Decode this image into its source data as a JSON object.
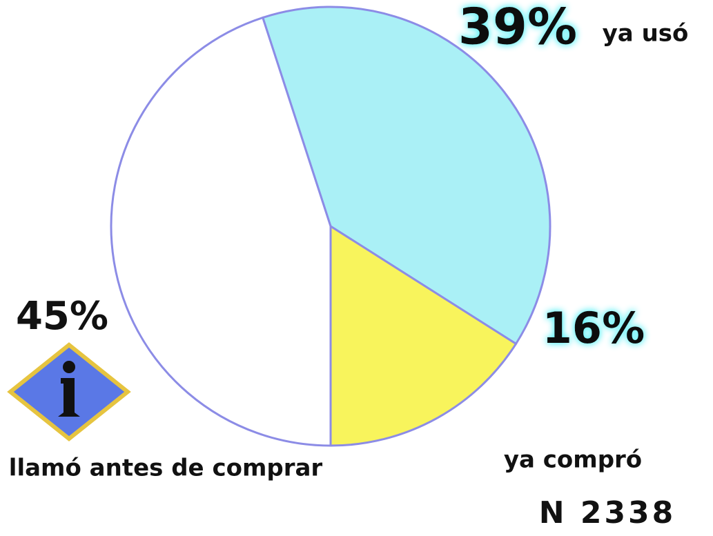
{
  "chart_data": {
    "type": "pie",
    "categories": [
      "llamó antes de comprar",
      "ya usó",
      "ya compró"
    ],
    "values": [
      45,
      39,
      16
    ],
    "value_labels": [
      "45%",
      "39%",
      "16%"
    ],
    "colors": [
      "#ffffff",
      "#aaf0f6",
      "#f8f45c"
    ],
    "annotations": [
      "N 2338"
    ]
  }
}
